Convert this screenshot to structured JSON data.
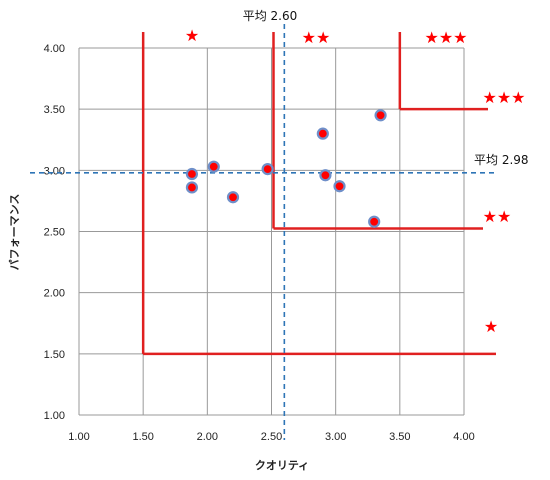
{
  "chart_data": {
    "type": "scatter",
    "xlabel": "クオリティ",
    "ylabel": "パフォーマンス",
    "xlim": [
      1.0,
      4.0
    ],
    "ylim": [
      1.0,
      4.0
    ],
    "x_ticks": [
      "1.00",
      "1.50",
      "2.00",
      "2.50",
      "3.00",
      "3.50",
      "4.00"
    ],
    "y_ticks": [
      "1.00",
      "1.50",
      "2.00",
      "2.50",
      "3.00",
      "3.50",
      "4.00"
    ],
    "grid": true,
    "points": [
      {
        "x": 1.88,
        "y": 2.97
      },
      {
        "x": 1.88,
        "y": 2.86
      },
      {
        "x": 2.05,
        "y": 3.03
      },
      {
        "x": 2.2,
        "y": 2.78
      },
      {
        "x": 2.47,
        "y": 3.01
      },
      {
        "x": 2.9,
        "y": 3.3
      },
      {
        "x": 2.92,
        "y": 2.96
      },
      {
        "x": 3.03,
        "y": 2.87
      },
      {
        "x": 3.3,
        "y": 2.58
      },
      {
        "x": 3.35,
        "y": 3.45
      }
    ],
    "reference_lines": {
      "vertical": {
        "value": 2.6,
        "label": "平均 2.60"
      },
      "horizontal": {
        "value": 2.98,
        "label": "平均 2.98"
      }
    },
    "zone_boundaries": [
      {
        "vertical_x": 1.5,
        "horizontal_y": 1.5
      },
      {
        "vertical_x": 2.5,
        "horizontal_y": 2.5
      },
      {
        "vertical_x": 3.5,
        "horizontal_y": 3.5
      }
    ],
    "star_labels": [
      "★",
      "★★",
      "★★★",
      "★★★",
      "★★",
      "★"
    ],
    "colors": {
      "points": "#ff0000",
      "point_edge": "#6f8fc9",
      "zones": "#e02020",
      "average": "#2e75b6",
      "grid": "#999999"
    }
  }
}
